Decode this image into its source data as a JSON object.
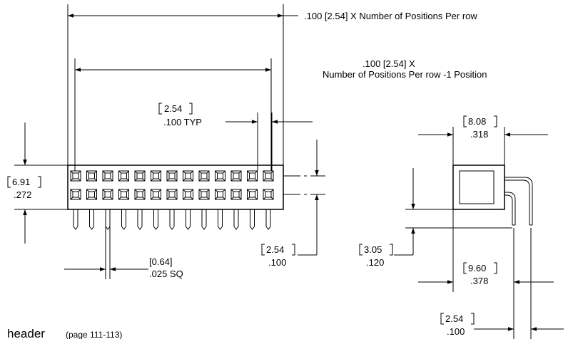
{
  "front_view": {
    "overall_length_note": ".100 [2.54] X Number of Positions Per row",
    "pin_span_note_line1": ".100 [2.54] X",
    "pin_span_note_line2": "Number of Positions Per row -1 Position",
    "pitch_metric": "2.54",
    "pitch_inch": ".100 TYP",
    "height_metric": "6.91",
    "height_inch": ".272",
    "pin_size_metric": "[0.64]",
    "pin_size_inch": ".025 SQ",
    "row_spacing_metric": "2.54",
    "row_spacing_inch": ".100",
    "positions_per_row": 13,
    "rows": 2
  },
  "side_view": {
    "depth_metric": "8.08",
    "depth_inch": ".318",
    "standoff_metric": "3.05",
    "standoff_inch": ".120",
    "lead_offset_metric": "9.60",
    "lead_offset_inch": ".378",
    "lead_pitch_metric": "2.54",
    "lead_pitch_inch": ".100"
  },
  "caption": {
    "main": "header",
    "page_ref": "(page 111-113)"
  }
}
